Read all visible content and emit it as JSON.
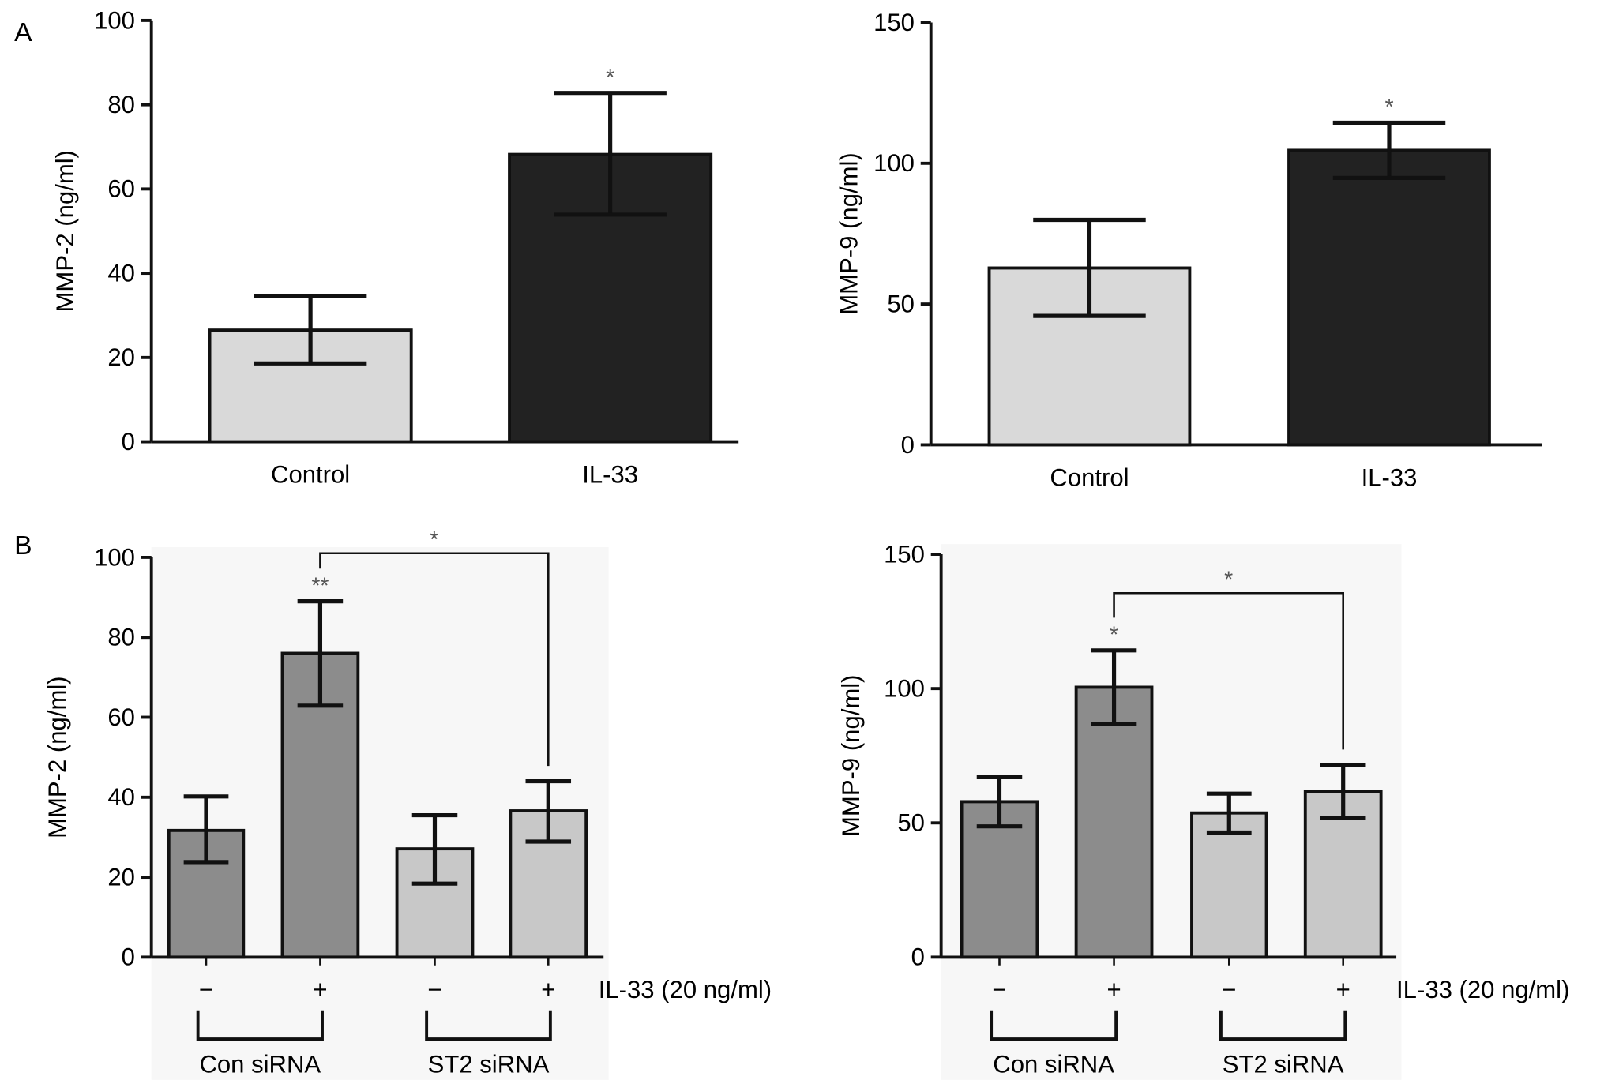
{
  "panels": {
    "A": "A",
    "B": "B"
  },
  "chart_data": [
    {
      "type": "bar",
      "panel": "A",
      "ylabel": "MMP-2 (ng/ml)",
      "ylim": [
        0,
        100
      ],
      "yticks": [
        0,
        20,
        40,
        60,
        80,
        100
      ],
      "categories": [
        "Control",
        "IL-33"
      ],
      "values": [
        26.5,
        68.2
      ],
      "error_low": [
        18.6,
        53.9
      ],
      "error_high": [
        34.6,
        82.8
      ],
      "annotations": [
        "",
        "*"
      ],
      "colors": [
        "#d9d9d9",
        "#222222"
      ]
    },
    {
      "type": "bar",
      "panel": "A",
      "ylabel": "MMP-9 (ng/ml)",
      "ylim": [
        0,
        150
      ],
      "yticks": [
        0,
        50,
        100,
        150
      ],
      "categories": [
        "Control",
        "IL-33"
      ],
      "values": [
        62.8,
        104.6
      ],
      "error_low": [
        45.8,
        94.8
      ],
      "error_high": [
        79.9,
        114.4
      ],
      "annotations": [
        "",
        "*"
      ],
      "colors": [
        "#d9d9d9",
        "#222222"
      ]
    },
    {
      "type": "bar",
      "panel": "B",
      "ylabel": "MMP-2 (ng/ml)",
      "ylim": [
        0,
        100
      ],
      "yticks": [
        0,
        20,
        40,
        60,
        80,
        100
      ],
      "categories": [
        "−",
        "+",
        "−",
        "+"
      ],
      "treatment_label": "IL-33 (20 ng/ml)",
      "groups": [
        "Con siRNA",
        "ST2 siRNA"
      ],
      "values": [
        31.7,
        76.0,
        27.1,
        36.6
      ],
      "error_low": [
        23.8,
        62.9,
        18.4,
        28.9
      ],
      "error_high": [
        40.2,
        89.0,
        35.5,
        44.0
      ],
      "annotations": [
        "",
        "**",
        "",
        ""
      ],
      "comparison": {
        "from": 1,
        "to": 3,
        "label": "*"
      },
      "colors": [
        "#8c8c8c",
        "#8c8c8c",
        "#c8c8c8",
        "#c8c8c8"
      ]
    },
    {
      "type": "bar",
      "panel": "B",
      "ylabel": "MMP-9 (ng/ml)",
      "ylim": [
        0,
        150
      ],
      "yticks": [
        0,
        50,
        100,
        150
      ],
      "categories": [
        "−",
        "+",
        "−",
        "+"
      ],
      "treatment_label": "IL-33 (20 ng/ml)",
      "groups": [
        "Con siRNA",
        "ST2 siRNA"
      ],
      "values": [
        57.9,
        100.5,
        53.7,
        61.7
      ],
      "error_low": [
        48.7,
        86.8,
        46.4,
        51.8
      ],
      "error_high": [
        67.0,
        114.2,
        60.9,
        71.6
      ],
      "annotations": [
        "",
        "*",
        "",
        ""
      ],
      "comparison": {
        "from": 1,
        "to": 3,
        "label": "*"
      },
      "colors": [
        "#8c8c8c",
        "#8c8c8c",
        "#c8c8c8",
        "#c8c8c8"
      ]
    }
  ]
}
